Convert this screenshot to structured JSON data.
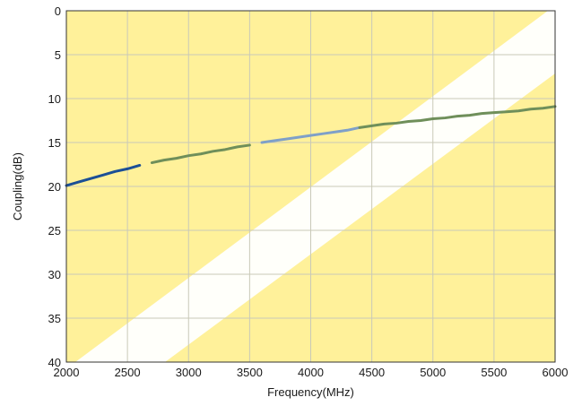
{
  "chart_data": {
    "type": "line",
    "title": "",
    "xlabel": "Frequency(MHz)",
    "ylabel": "Coupling(dB)",
    "xlim": [
      2000,
      6000
    ],
    "ylim": [
      0,
      40
    ],
    "y_inverted": true,
    "grid": true,
    "x_ticks": [
      2000,
      2500,
      3000,
      3500,
      4000,
      4500,
      5000,
      5500,
      6000
    ],
    "y_ticks": [
      0,
      5,
      10,
      15,
      20,
      25,
      30,
      35,
      40
    ],
    "colors": {
      "plot_background": "#fff19a",
      "grid": "#c9c9b8",
      "line_primary": "#1b4f96",
      "line_light": "#7fa0c8",
      "line_green": "#6f8f5a",
      "watermark": "#ffffff"
    },
    "series": [
      {
        "color_segments": [
          {
            "from": 2000,
            "to": 2650,
            "color": "#1b4f96"
          },
          {
            "from": 2650,
            "to": 3550,
            "color": "#6f8f5a"
          },
          {
            "from": 3550,
            "to": 4400,
            "color": "#7fa0c8"
          },
          {
            "from": 4400,
            "to": 6000,
            "color": "#6f8f5a"
          }
        ],
        "x": [
          2000,
          2100,
          2200,
          2300,
          2400,
          2500,
          2600,
          2700,
          2800,
          2900,
          3000,
          3100,
          3200,
          3300,
          3400,
          3500,
          3600,
          3700,
          3800,
          3900,
          4000,
          4100,
          4200,
          4300,
          4400,
          4500,
          4600,
          4700,
          4800,
          4900,
          5000,
          5100,
          5200,
          5300,
          5400,
          5500,
          5600,
          5700,
          5800,
          5900,
          6000
        ],
        "y": [
          19.9,
          19.5,
          19.1,
          18.7,
          18.3,
          18.0,
          17.6,
          17.3,
          17.0,
          16.8,
          16.5,
          16.3,
          16.0,
          15.8,
          15.5,
          15.3,
          15.0,
          14.8,
          14.6,
          14.4,
          14.2,
          14.0,
          13.8,
          13.6,
          13.3,
          13.1,
          12.9,
          12.8,
          12.6,
          12.5,
          12.3,
          12.2,
          12.0,
          11.9,
          11.7,
          11.6,
          11.5,
          11.4,
          11.2,
          11.1,
          10.9
        ]
      }
    ]
  }
}
